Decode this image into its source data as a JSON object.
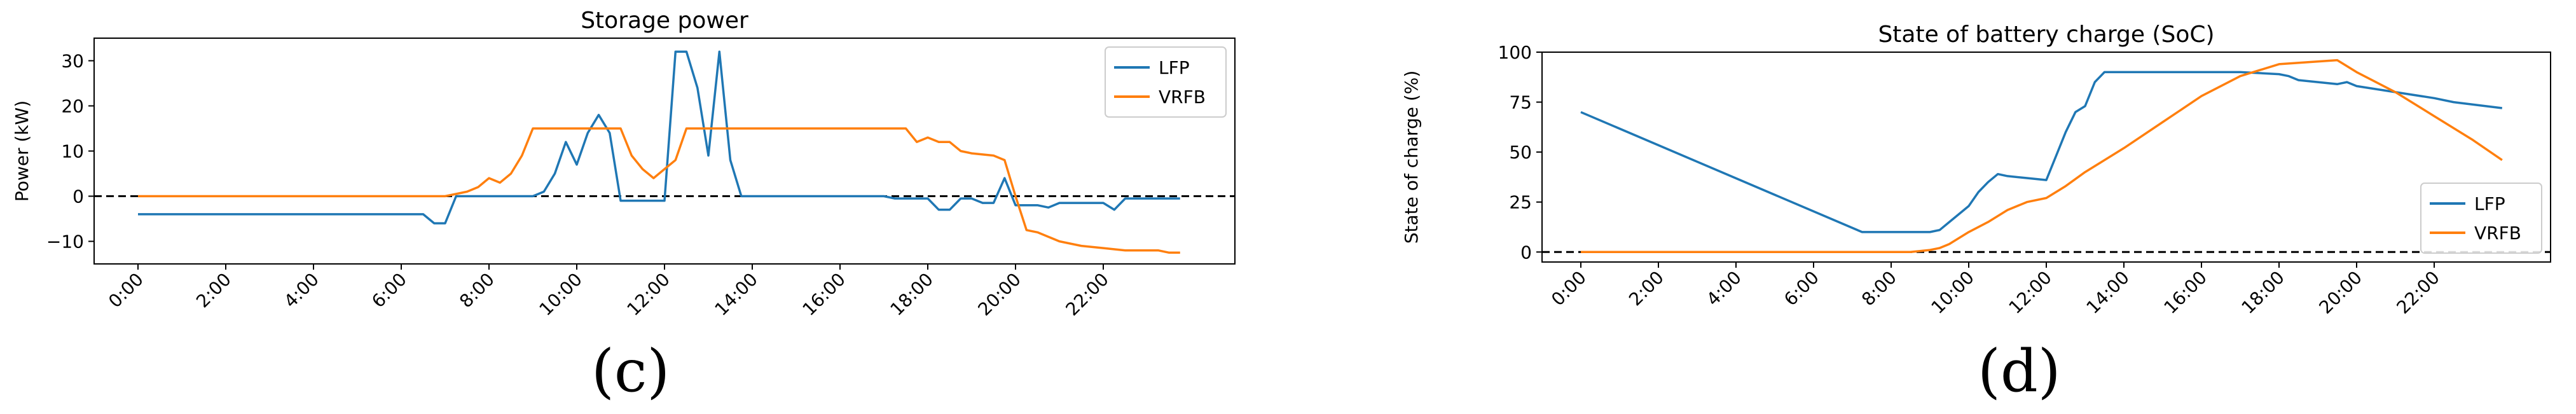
{
  "panel_labels": [
    "(c)",
    "(d)"
  ],
  "chart_data": [
    {
      "type": "line",
      "title": "Storage power",
      "xlabel": "",
      "ylabel": "Power (kW)",
      "xlim": [
        -1,
        25
      ],
      "ylim": [
        -15,
        35
      ],
      "xticks": [
        0,
        2,
        4,
        6,
        8,
        10,
        12,
        14,
        16,
        18,
        20,
        22
      ],
      "xtick_labels": [
        "0:00",
        "2:00",
        "4:00",
        "6:00",
        "8:00",
        "10:00",
        "12:00",
        "14:00",
        "16:00",
        "18:00",
        "20:00",
        "22:00"
      ],
      "yticks": [
        -10,
        0,
        10,
        20,
        30
      ],
      "ytick_labels": [
        "−10",
        "0",
        "10",
        "20",
        "30"
      ],
      "hline": 0,
      "legend": "top-right",
      "series": [
        {
          "name": "LFP",
          "color": "#1f77b4",
          "points": [
            [
              0,
              -4
            ],
            [
              6.5,
              -4
            ],
            [
              6.75,
              -6
            ],
            [
              7,
              -6
            ],
            [
              7.25,
              0
            ],
            [
              8,
              0
            ],
            [
              9,
              0
            ],
            [
              9.25,
              1
            ],
            [
              9.5,
              5
            ],
            [
              9.75,
              12
            ],
            [
              10,
              7
            ],
            [
              10.25,
              14
            ],
            [
              10.5,
              18
            ],
            [
              10.75,
              14
            ],
            [
              11,
              -1
            ],
            [
              11.5,
              -1
            ],
            [
              12,
              -1
            ],
            [
              12.25,
              32
            ],
            [
              12.5,
              32
            ],
            [
              12.75,
              24
            ],
            [
              13,
              9
            ],
            [
              13.25,
              32
            ],
            [
              13.5,
              8
            ],
            [
              13.75,
              0
            ],
            [
              14,
              0
            ],
            [
              15,
              0
            ],
            [
              16,
              0
            ],
            [
              17,
              0
            ],
            [
              17.25,
              -0.5
            ],
            [
              17.75,
              -0.5
            ],
            [
              18,
              -0.5
            ],
            [
              18.25,
              -3
            ],
            [
              18.5,
              -3
            ],
            [
              18.75,
              -0.5
            ],
            [
              19,
              -0.5
            ],
            [
              19.25,
              -1.5
            ],
            [
              19.5,
              -1.5
            ],
            [
              19.75,
              4
            ],
            [
              20,
              -2
            ],
            [
              20.5,
              -2
            ],
            [
              20.75,
              -2.5
            ],
            [
              21,
              -1.5
            ],
            [
              21.5,
              -1.5
            ],
            [
              22,
              -1.5
            ],
            [
              22.25,
              -3
            ],
            [
              22.5,
              -0.5
            ],
            [
              23,
              -0.5
            ],
            [
              23.75,
              -0.5
            ]
          ]
        },
        {
          "name": "VRFB",
          "color": "#ff7f0e",
          "points": [
            [
              0,
              0
            ],
            [
              7,
              0
            ],
            [
              7.5,
              1
            ],
            [
              7.75,
              2
            ],
            [
              8,
              4
            ],
            [
              8.25,
              3
            ],
            [
              8.5,
              5
            ],
            [
              8.75,
              9
            ],
            [
              9,
              15
            ],
            [
              9.5,
              15
            ],
            [
              10,
              15
            ],
            [
              10.5,
              15
            ],
            [
              10.75,
              15
            ],
            [
              11,
              15
            ],
            [
              11.25,
              9
            ],
            [
              11.5,
              6
            ],
            [
              11.75,
              4
            ],
            [
              12,
              6
            ],
            [
              12.25,
              8
            ],
            [
              12.5,
              15
            ],
            [
              13,
              15
            ],
            [
              14,
              15
            ],
            [
              15,
              15
            ],
            [
              16,
              15
            ],
            [
              17,
              15
            ],
            [
              17.5,
              15
            ],
            [
              17.75,
              12
            ],
            [
              18,
              13
            ],
            [
              18.25,
              12
            ],
            [
              18.5,
              12
            ],
            [
              18.75,
              10
            ],
            [
              19,
              9.5
            ],
            [
              19.5,
              9
            ],
            [
              19.75,
              8
            ],
            [
              20,
              0
            ],
            [
              20.25,
              -7.5
            ],
            [
              20.5,
              -8
            ],
            [
              21,
              -10
            ],
            [
              21.5,
              -11
            ],
            [
              22,
              -11.5
            ],
            [
              22.5,
              -12
            ],
            [
              23,
              -12
            ],
            [
              23.25,
              -12
            ],
            [
              23.5,
              -12.5
            ],
            [
              23.75,
              -12.5
            ]
          ]
        }
      ]
    },
    {
      "type": "line",
      "title": "State of battery charge (SoC)",
      "xlabel": "",
      "ylabel": "State of charge (%)",
      "xlim": [
        -1,
        25
      ],
      "ylim": [
        -5,
        100
      ],
      "xticks": [
        0,
        2,
        4,
        6,
        8,
        10,
        12,
        14,
        16,
        18,
        20,
        22
      ],
      "xtick_labels": [
        "0:00",
        "2:00",
        "4:00",
        "6:00",
        "8:00",
        "10:00",
        "12:00",
        "14:00",
        "16:00",
        "18:00",
        "20:00",
        "22:00"
      ],
      "yticks": [
        0,
        25,
        50,
        75,
        100
      ],
      "ytick_labels": [
        "0",
        "25",
        "50",
        "75",
        "100"
      ],
      "hline": 0,
      "legend": "bottom-right",
      "series": [
        {
          "name": "LFP",
          "color": "#1f77b4",
          "points": [
            [
              0,
              70
            ],
            [
              7.25,
              10
            ],
            [
              9,
              10
            ],
            [
              9.25,
              11
            ],
            [
              9.5,
              15
            ],
            [
              10,
              23
            ],
            [
              10.25,
              30
            ],
            [
              10.5,
              35
            ],
            [
              10.75,
              39
            ],
            [
              11,
              38
            ],
            [
              11.5,
              37
            ],
            [
              12,
              36
            ],
            [
              12.25,
              48
            ],
            [
              12.5,
              60
            ],
            [
              12.75,
              70
            ],
            [
              13,
              73
            ],
            [
              13.25,
              85
            ],
            [
              13.5,
              90
            ],
            [
              14,
              90
            ],
            [
              16,
              90
            ],
            [
              17,
              90
            ],
            [
              18,
              89
            ],
            [
              18.25,
              88
            ],
            [
              18.5,
              86
            ],
            [
              19,
              85
            ],
            [
              19.5,
              84
            ],
            [
              19.75,
              85
            ],
            [
              20,
              83
            ],
            [
              21,
              80
            ],
            [
              22,
              77
            ],
            [
              22.5,
              75
            ],
            [
              23.75,
              72
            ]
          ]
        },
        {
          "name": "VRFB",
          "color": "#ff7f0e",
          "points": [
            [
              0,
              0
            ],
            [
              7,
              0
            ],
            [
              8.5,
              0
            ],
            [
              9,
              1
            ],
            [
              9.25,
              2
            ],
            [
              9.5,
              4
            ],
            [
              10,
              10
            ],
            [
              10.5,
              15
            ],
            [
              11,
              21
            ],
            [
              11.5,
              25
            ],
            [
              12,
              27
            ],
            [
              12.5,
              33
            ],
            [
              13,
              40
            ],
            [
              14,
              52
            ],
            [
              15,
              65
            ],
            [
              16,
              78
            ],
            [
              17,
              88
            ],
            [
              18,
              94
            ],
            [
              19.5,
              96
            ],
            [
              20,
              90
            ],
            [
              21,
              80
            ],
            [
              22,
              68
            ],
            [
              23,
              56
            ],
            [
              23.75,
              46
            ]
          ]
        }
      ]
    }
  ]
}
